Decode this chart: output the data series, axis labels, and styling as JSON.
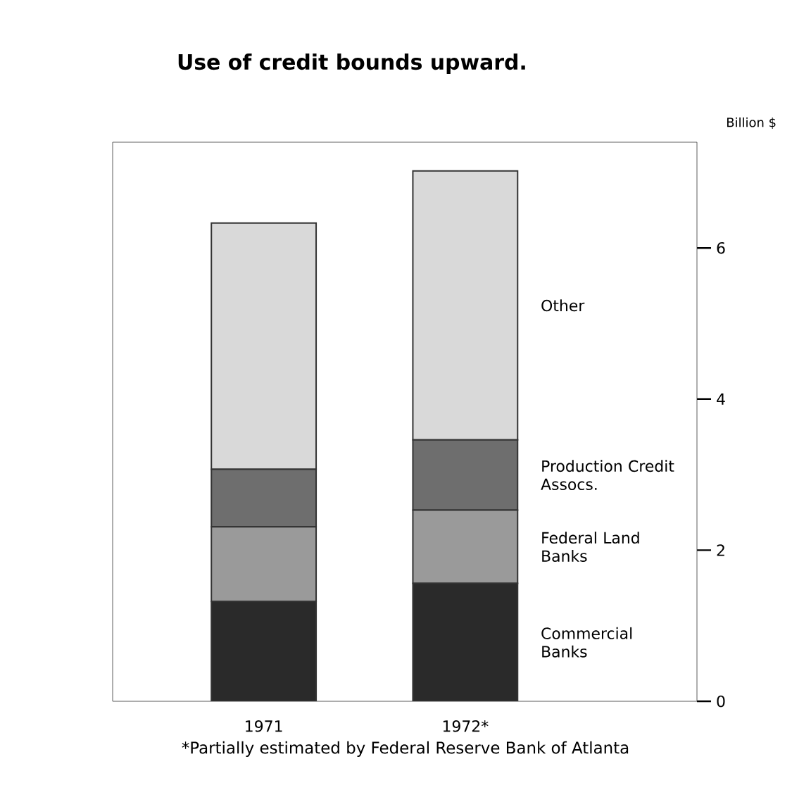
{
  "chart_data": {
    "type": "bar",
    "stacked": true,
    "title": "Use of credit bounds upward.",
    "ylabel": "Billion $",
    "categories": [
      "1971",
      "1972*"
    ],
    "series": [
      {
        "name": "Commercial Banks",
        "color": "#2a2a2a",
        "values": [
          1.32,
          1.56
        ]
      },
      {
        "name": "Federal Land Banks",
        "color": "#9a9a9a",
        "values": [
          0.99,
          0.97
        ]
      },
      {
        "name": "Production Credit Assocs.",
        "color": "#6e6e6e",
        "values": [
          0.76,
          0.93
        ]
      },
      {
        "name": "Other",
        "color": "#d9d9d9",
        "values": [
          3.26,
          3.56
        ]
      }
    ],
    "ylim": [
      0,
      7.4
    ],
    "yticks": [
      0,
      2,
      4,
      6
    ],
    "grid": false,
    "legend": "right",
    "annotations": [
      "*Partially estimated by Federal Reserve Bank of Atlanta"
    ]
  }
}
